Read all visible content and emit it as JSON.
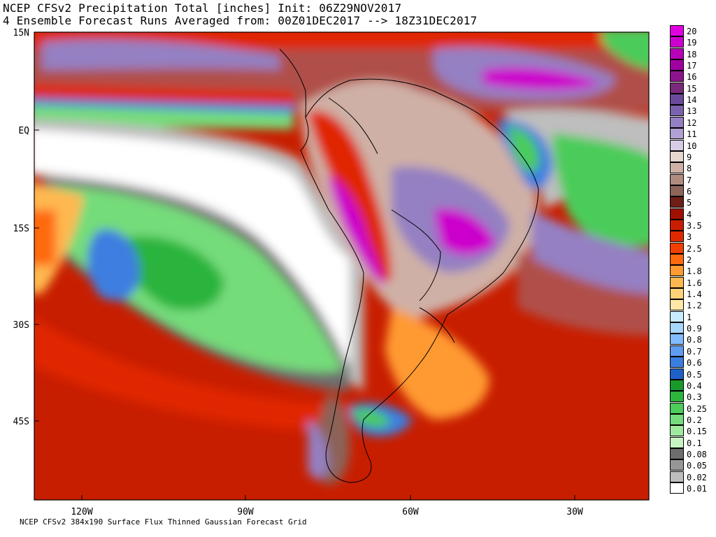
{
  "title_line1": "NCEP CFSv2 Precipitation Total [inches] Init: 06Z29NOV2017",
  "title_line2": "4 Ensemble Forecast Runs Averaged from: 00Z01DEC2017 --> 18Z31DEC2017",
  "footer": "NCEP CFSv2 384x190 Surface Flux Thinned Gaussian Forecast Grid",
  "lat_labels": [
    "15N",
    "EQ",
    "15S",
    "30S",
    "45S"
  ],
  "lon_labels": [
    "120W",
    "90W",
    "60W",
    "30W"
  ],
  "legend": {
    "labels": [
      "20",
      "19",
      "18",
      "17",
      "16",
      "15",
      "14",
      "13",
      "12",
      "11",
      "10",
      "9",
      "8",
      "7",
      "6",
      "5",
      "4",
      "3.5",
      "3",
      "2.5",
      "2",
      "1.8",
      "1.6",
      "1.4",
      "1.2",
      "1",
      "0.9",
      "0.8",
      "0.7",
      "0.6",
      "0.5",
      "0.4",
      "0.3",
      "0.25",
      "0.2",
      "0.15",
      "0.1",
      "0.08",
      "0.05",
      "0.02",
      "0.01"
    ],
    "colors": [
      "#e000e0",
      "#cc00cc",
      "#b800b8",
      "#a000a0",
      "#8c148c",
      "#7a2a7a",
      "#6a4a9a",
      "#7a62ae",
      "#9480c2",
      "#b0a0d4",
      "#d6cce6",
      "#e6d6d0",
      "#cfb0a6",
      "#b08c80",
      "#8c6458",
      "#6e1e16",
      "#a01000",
      "#c81e00",
      "#e02800",
      "#f04000",
      "#ff6a10",
      "#ff9a30",
      "#ffb850",
      "#ffd27a",
      "#ffe8a6",
      "#c8ecff",
      "#a6d8ff",
      "#82bcff",
      "#5e9cf0",
      "#3c7ee0",
      "#1e60c8",
      "#1a9a2a",
      "#2cb43c",
      "#4ccc5a",
      "#74dc7a",
      "#a0eaa0",
      "#c8f4c4",
      "#6e6e6e",
      "#969696",
      "#bebebe",
      "#ffffff"
    ]
  }
}
